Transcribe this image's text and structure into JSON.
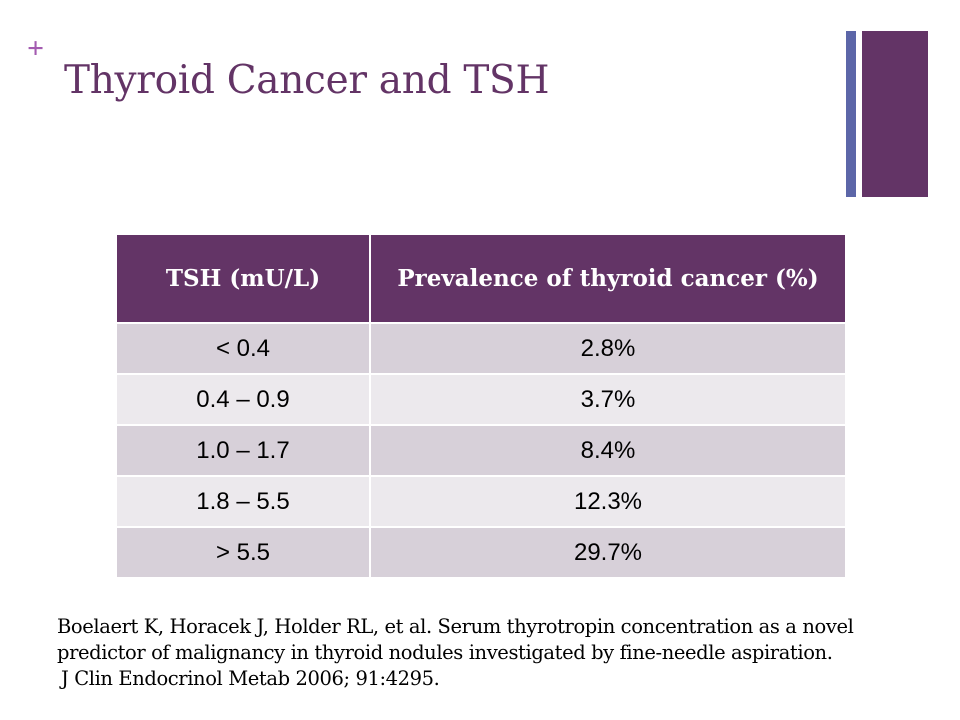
{
  "slide": {
    "plus_mark": "+",
    "title": "Thyroid Cancer and TSH",
    "colors": {
      "accent_purple": "#633466",
      "accent_blue": "#5c66a8",
      "plus_pink": "#a35bb0",
      "row_dark": "#d7d0d9",
      "row_light": "#ece9ed"
    }
  },
  "table": {
    "headers": [
      "TSH (mU/L)",
      "Prevalence of thyroid cancer (%)"
    ],
    "rows": [
      [
        "< 0.4",
        "2.8%"
      ],
      [
        "0.4 – 0.9",
        "3.7%"
      ],
      [
        "1.0 – 1.7",
        "8.4%"
      ],
      [
        "1.8 – 5.5",
        "12.3%"
      ],
      [
        "> 5.5",
        "29.7%"
      ]
    ]
  },
  "citation": {
    "lines": [
      "Boelaert K, Horacek J, Holder RL, et al. Serum thyrotropin concentration as a novel",
      "predictor of malignancy in thyroid nodules investigated by fine-needle aspiration.",
      "J Clin Endocrinol Metab 2006; 91:4295."
    ]
  }
}
